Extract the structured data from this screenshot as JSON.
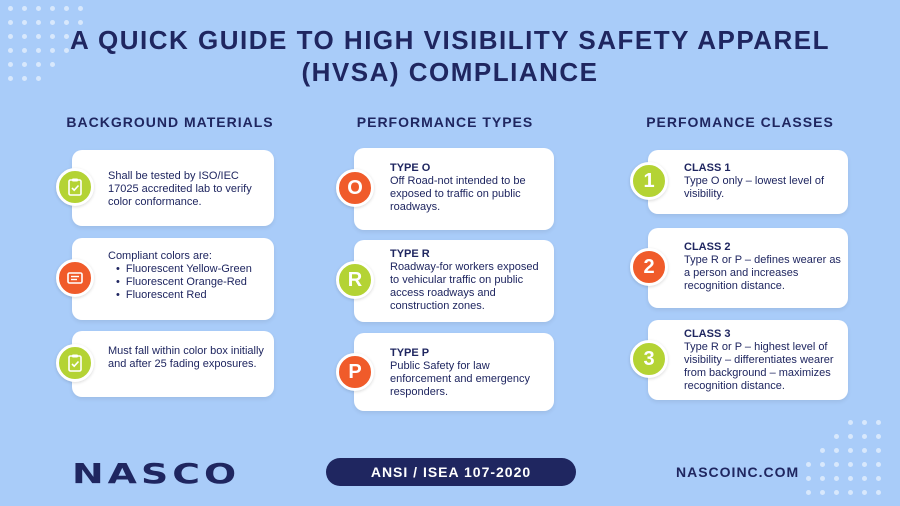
{
  "title": {
    "line1": "A QUICK GUIDE TO HIGH VISIBILITY SAFETY APPAREL",
    "line2": "(HVSA) COMPLIANCE"
  },
  "columns": {
    "materials": {
      "heading": "BACKGROUND MATERIALS",
      "cards": [
        {
          "icon": "clipboard-check-icon",
          "text": "Shall be tested by ISO/IEC 17025 accredited lab to verify color conformance."
        },
        {
          "icon": "color-swatch-icon",
          "intro": "Compliant colors are:",
          "items": [
            "Fluorescent Yellow-Green",
            "Fluorescent Orange-Red",
            "Fluorescent Red"
          ]
        },
        {
          "icon": "clipboard-check-icon",
          "text": "Must fall within color box initially and after 25 fading exposures."
        }
      ]
    },
    "types": {
      "heading": "PERFORMANCE TYPES",
      "cards": [
        {
          "badge": "O",
          "label": "TYPE O",
          "text": "Off Road-not intended to be exposed to traffic on public roadways."
        },
        {
          "badge": "R",
          "label": "TYPE R",
          "text": "Roadway-for workers exposed to vehicular traffic on public access roadways and construction zones."
        },
        {
          "badge": "P",
          "label": "TYPE P",
          "text": "Public Safety for law enforcement and emergency responders."
        }
      ]
    },
    "classes": {
      "heading": "PERFOMANCE CLASSES",
      "cards": [
        {
          "badge": "1",
          "label": "CLASS 1",
          "text": "Type O only – lowest level of visibility."
        },
        {
          "badge": "2",
          "label": "CLASS 2",
          "text": "Type R or P – defines wearer as a person and increases recognition distance."
        },
        {
          "badge": "3",
          "label": "CLASS 3",
          "text": "Type R or P – highest level of visibility – differentiates wearer from background – maximizes recognition distance."
        }
      ]
    }
  },
  "footer": {
    "logo": "NASCO",
    "standard": "ANSI / ISEA 107-2020",
    "website": "NASCOINC.COM"
  },
  "colors": {
    "background": "#a9ccf9",
    "navy": "#1f2660",
    "green": "#b4d334",
    "orange": "#f05b2a"
  }
}
